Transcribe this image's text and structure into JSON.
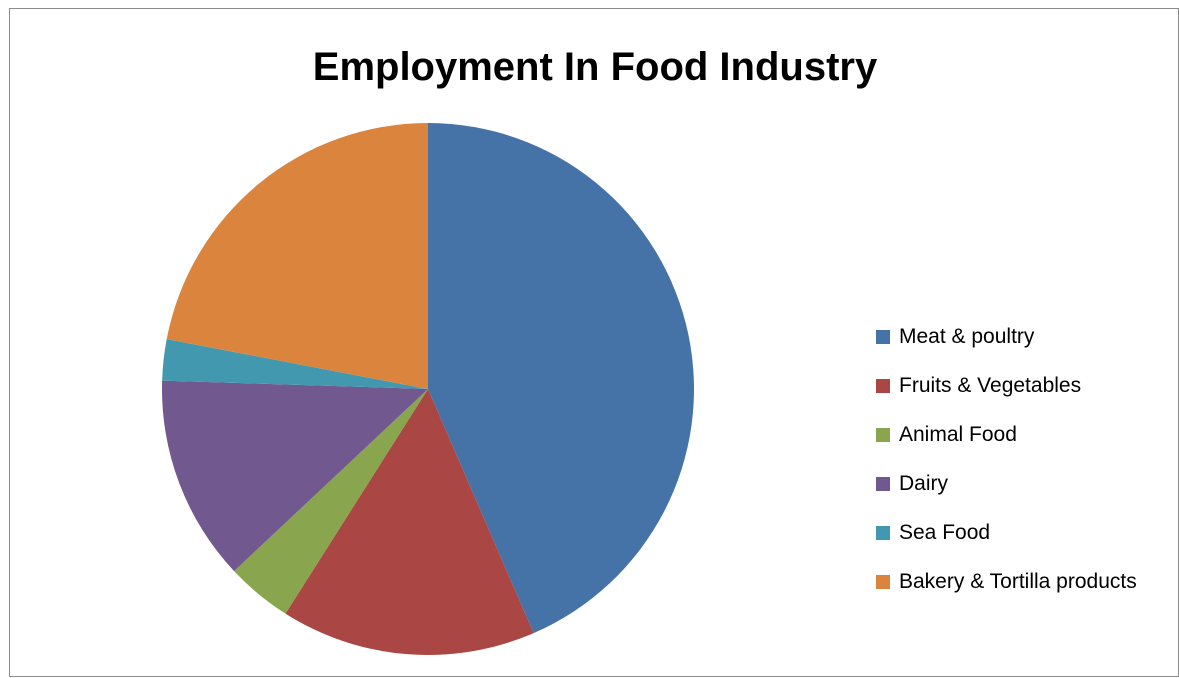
{
  "chart_data": {
    "type": "pie",
    "title": "Employment In Food Industry",
    "categories": [
      "Meat & poultry",
      "Fruits & Vegetables",
      "Animal Food",
      "Dairy",
      "Sea Food",
      "Bakery & Tortilla products"
    ],
    "values": [
      43.5,
      15.5,
      4.0,
      12.5,
      2.5,
      22.0
    ],
    "colors": [
      "#4572a7",
      "#aa4643",
      "#89a54e",
      "#71588f",
      "#4198af",
      "#db843d"
    ],
    "legend_position": "right",
    "start_angle": "12 o'clock",
    "direction": "clockwise"
  }
}
